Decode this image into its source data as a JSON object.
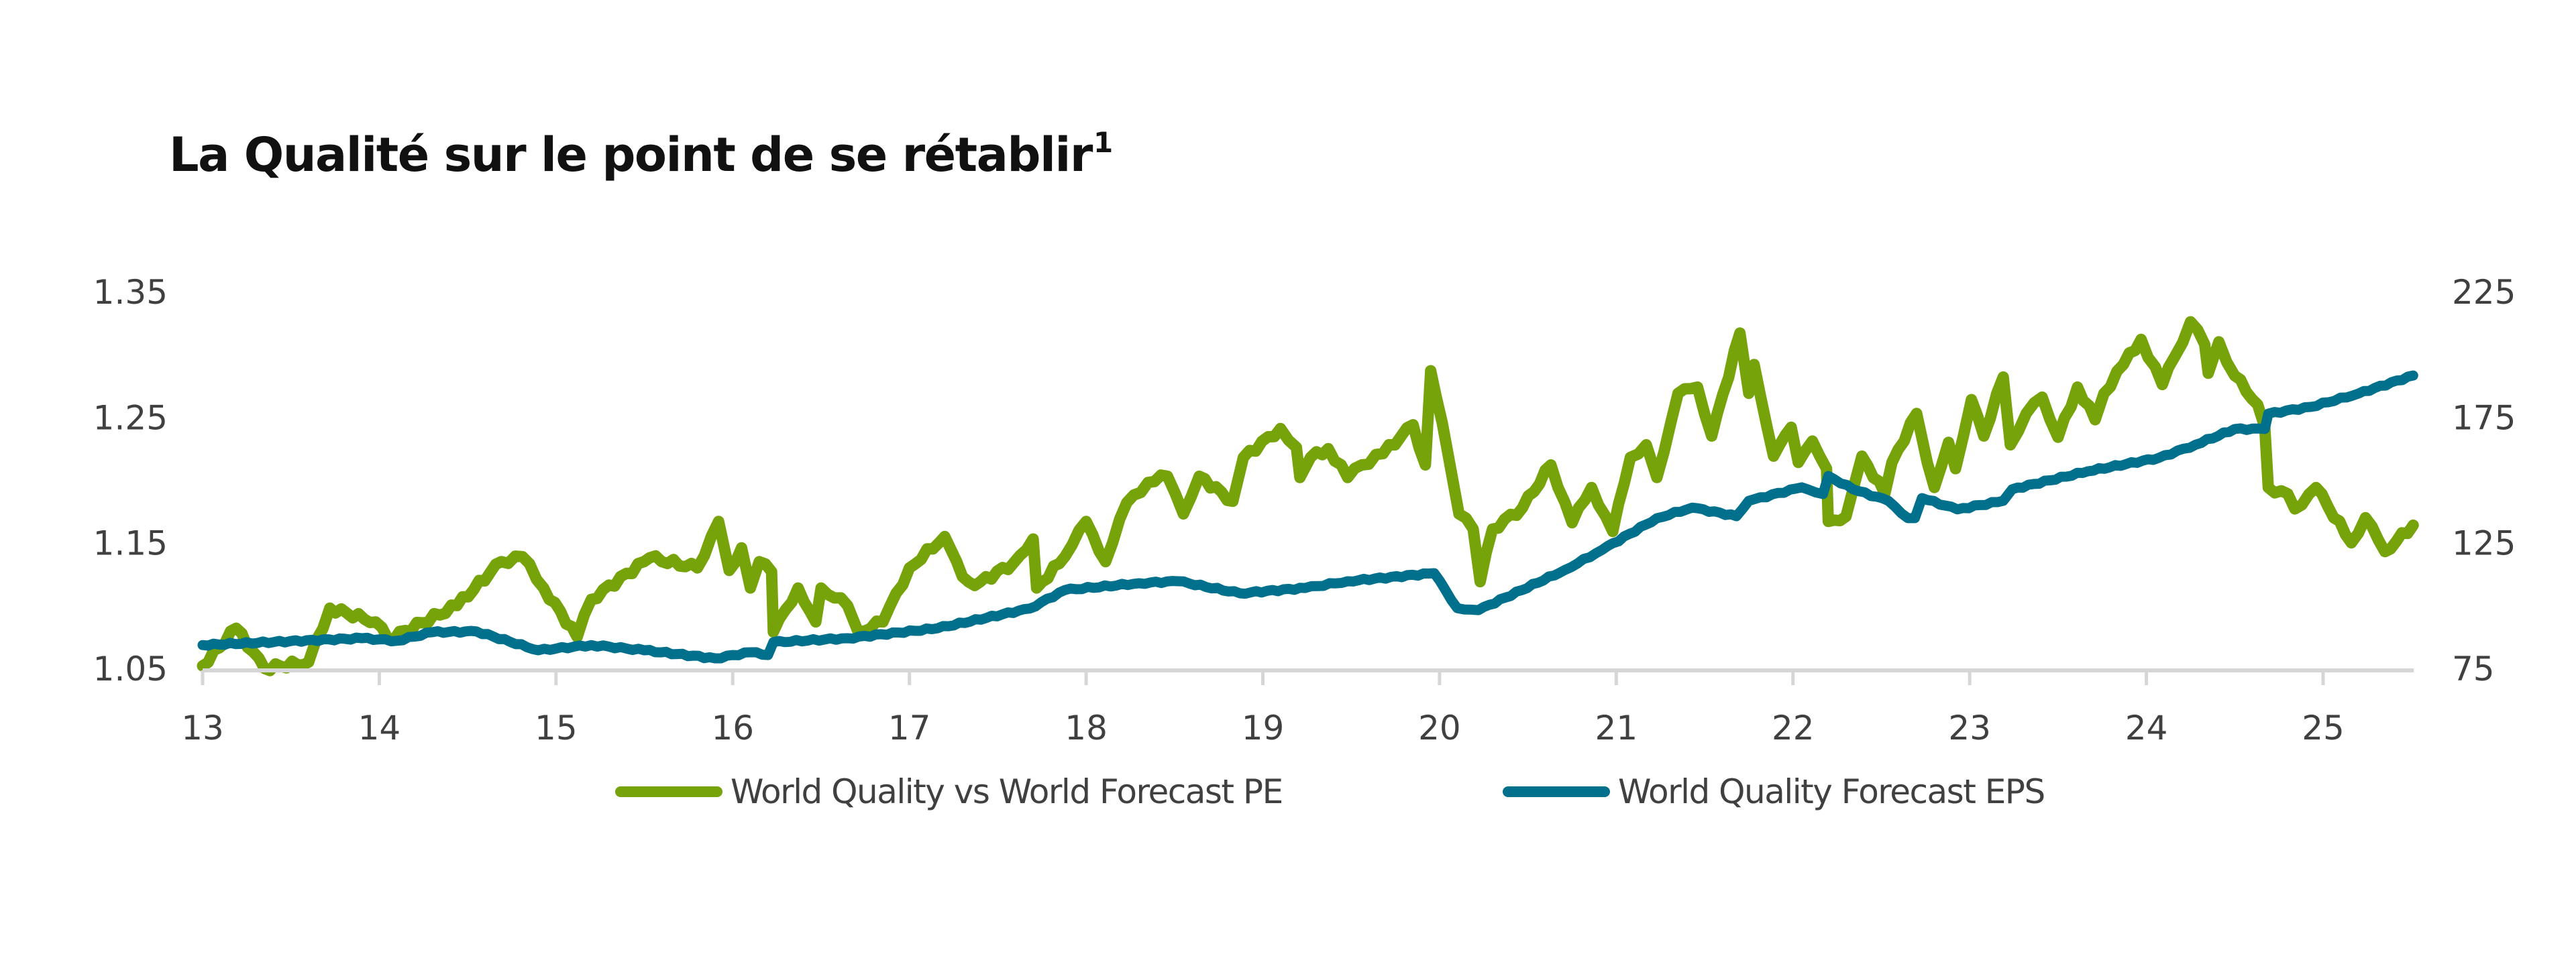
{
  "chart_data": {
    "type": "line",
    "title": "La Qualité sur le point de se rétablir",
    "title_footnote": "1",
    "xlabel": "",
    "x_ticks": [
      "13",
      "14",
      "15",
      "16",
      "17",
      "18",
      "19",
      "20",
      "21",
      "22",
      "23",
      "24",
      "25"
    ],
    "x_range": [
      13,
      25.51
    ],
    "y_left": {
      "label": "",
      "ticks": [
        "1.35",
        "1.25",
        "1.15",
        "1.05"
      ],
      "range": [
        1.05,
        1.35
      ]
    },
    "y_right": {
      "label": "",
      "ticks": [
        "225",
        "175",
        "125",
        "75"
      ],
      "range": [
        75,
        225
      ]
    },
    "grid": false,
    "legend_position": "bottom",
    "series": [
      {
        "name": "World Quality vs World Forecast PE",
        "axis": "left",
        "color": "#76A20A",
        "points": [
          [
            13.0,
            1.052
          ],
          [
            13.19,
            1.082
          ],
          [
            13.35,
            1.05
          ],
          [
            13.6,
            1.055
          ],
          [
            13.72,
            1.098
          ],
          [
            13.98,
            1.087
          ],
          [
            14.05,
            1.073
          ],
          [
            14.44,
            1.1
          ],
          [
            14.69,
            1.135
          ],
          [
            14.81,
            1.139
          ],
          [
            14.93,
            1.114
          ],
          [
            15.12,
            1.075
          ],
          [
            15.2,
            1.105
          ],
          [
            15.53,
            1.138
          ],
          [
            15.8,
            1.13
          ],
          [
            15.92,
            1.167
          ],
          [
            15.98,
            1.128
          ],
          [
            16.05,
            1.146
          ],
          [
            16.1,
            1.114
          ],
          [
            16.15,
            1.135
          ],
          [
            16.22,
            1.127
          ],
          [
            16.23,
            1.079
          ],
          [
            16.37,
            1.114
          ],
          [
            16.47,
            1.087
          ],
          [
            16.5,
            1.114
          ],
          [
            16.65,
            1.1
          ],
          [
            16.71,
            1.079
          ],
          [
            16.85,
            1.087
          ],
          [
            17.0,
            1.13
          ],
          [
            17.2,
            1.155
          ],
          [
            17.3,
            1.123
          ],
          [
            17.37,
            1.116
          ],
          [
            17.59,
            1.134
          ],
          [
            17.7,
            1.153
          ],
          [
            17.72,
            1.114
          ],
          [
            17.88,
            1.139
          ],
          [
            18.0,
            1.167
          ],
          [
            18.11,
            1.135
          ],
          [
            18.23,
            1.182
          ],
          [
            18.35,
            1.198
          ],
          [
            18.46,
            1.203
          ],
          [
            18.55,
            1.173
          ],
          [
            18.64,
            1.203
          ],
          [
            18.83,
            1.183
          ],
          [
            18.89,
            1.218
          ],
          [
            19.1,
            1.241
          ],
          [
            19.19,
            1.226
          ],
          [
            19.21,
            1.202
          ],
          [
            19.27,
            1.218
          ],
          [
            19.37,
            1.225
          ],
          [
            19.48,
            1.202
          ],
          [
            19.56,
            1.212
          ],
          [
            19.68,
            1.221
          ],
          [
            19.85,
            1.244
          ],
          [
            19.92,
            1.212
          ],
          [
            19.95,
            1.287
          ],
          [
            19.98,
            1.267
          ],
          [
            20.05,
            1.219
          ],
          [
            20.11,
            1.173
          ],
          [
            20.19,
            1.161
          ],
          [
            20.23,
            1.119
          ],
          [
            20.3,
            1.161
          ],
          [
            20.47,
            1.178
          ],
          [
            20.63,
            1.212
          ],
          [
            20.75,
            1.166
          ],
          [
            20.86,
            1.194
          ],
          [
            20.98,
            1.159
          ],
          [
            21.08,
            1.218
          ],
          [
            21.17,
            1.228
          ],
          [
            21.23,
            1.202
          ],
          [
            21.35,
            1.269
          ],
          [
            21.46,
            1.274
          ],
          [
            21.54,
            1.235
          ],
          [
            21.7,
            1.317
          ],
          [
            21.75,
            1.269
          ],
          [
            21.78,
            1.292
          ],
          [
            21.89,
            1.219
          ],
          [
            21.99,
            1.242
          ],
          [
            22.03,
            1.214
          ],
          [
            22.11,
            1.231
          ],
          [
            22.19,
            1.209
          ],
          [
            22.2,
            1.167
          ],
          [
            22.3,
            1.171
          ],
          [
            22.39,
            1.219
          ],
          [
            22.52,
            1.189
          ],
          [
            22.56,
            1.214
          ],
          [
            22.7,
            1.253
          ],
          [
            22.76,
            1.214
          ],
          [
            22.8,
            1.194
          ],
          [
            22.88,
            1.23
          ],
          [
            22.92,
            1.209
          ],
          [
            23.01,
            1.264
          ],
          [
            23.08,
            1.235
          ],
          [
            23.19,
            1.282
          ],
          [
            23.23,
            1.228
          ],
          [
            23.32,
            1.253
          ],
          [
            23.41,
            1.266
          ],
          [
            23.5,
            1.234
          ],
          [
            23.61,
            1.274
          ],
          [
            23.71,
            1.248
          ],
          [
            23.76,
            1.269
          ],
          [
            23.87,
            1.292
          ],
          [
            23.97,
            1.312
          ],
          [
            24.09,
            1.276
          ],
          [
            24.16,
            1.298
          ],
          [
            24.25,
            1.326
          ],
          [
            24.33,
            1.308
          ],
          [
            24.35,
            1.285
          ],
          [
            24.41,
            1.31
          ],
          [
            24.5,
            1.283
          ],
          [
            24.63,
            1.26
          ],
          [
            24.67,
            1.242
          ],
          [
            24.69,
            1.194
          ],
          [
            24.8,
            1.189
          ],
          [
            24.84,
            1.177
          ],
          [
            24.96,
            1.194
          ],
          [
            25.16,
            1.15
          ],
          [
            25.24,
            1.17
          ],
          [
            25.35,
            1.143
          ],
          [
            25.51,
            1.164
          ]
        ]
      },
      {
        "name": "World Quality Forecast EPS",
        "axis": "right",
        "color": "#00708C",
        "points": [
          [
            13.0,
            84.3
          ],
          [
            13.9,
            87
          ],
          [
            14.1,
            86
          ],
          [
            14.3,
            89.4
          ],
          [
            14.55,
            89.7
          ],
          [
            14.9,
            82.2
          ],
          [
            15.2,
            84.3
          ],
          [
            15.5,
            82.2
          ],
          [
            15.9,
            79
          ],
          [
            16.1,
            81.4
          ],
          [
            16.2,
            80.3
          ],
          [
            16.23,
            85.4
          ],
          [
            16.65,
            87
          ],
          [
            17.16,
            91
          ],
          [
            17.68,
            98.8
          ],
          [
            17.88,
            106.2
          ],
          [
            18.3,
            108.9
          ],
          [
            18.52,
            109.7
          ],
          [
            18.87,
            104.9
          ],
          [
            19.24,
            107
          ],
          [
            19.48,
            109.7
          ],
          [
            19.97,
            112.9
          ],
          [
            20.1,
            99
          ],
          [
            20.22,
            98.2
          ],
          [
            20.71,
            114.2
          ],
          [
            20.92,
            122.2
          ],
          [
            21.23,
            134.8
          ],
          [
            21.43,
            139
          ],
          [
            21.68,
            135.6
          ],
          [
            21.75,
            141.7
          ],
          [
            22.05,
            147.1
          ],
          [
            22.17,
            144.4
          ],
          [
            22.2,
            151.6
          ],
          [
            22.34,
            146.3
          ],
          [
            22.54,
            141.7
          ],
          [
            22.65,
            134.8
          ],
          [
            22.69,
            134.8
          ],
          [
            22.73,
            142.8
          ],
          [
            22.93,
            138.3
          ],
          [
            23.19,
            141.7
          ],
          [
            23.24,
            146.3
          ],
          [
            23.67,
            153.5
          ],
          [
            24.07,
            158.8
          ],
          [
            24.28,
            164.1
          ],
          [
            24.5,
            170.3
          ],
          [
            24.67,
            170.3
          ],
          [
            24.69,
            176.4
          ],
          [
            24.93,
            179.1
          ],
          [
            25.2,
            184.4
          ],
          [
            25.51,
            191.6
          ]
        ]
      }
    ]
  },
  "legend": [
    {
      "label": "World Quality vs World Forecast PE",
      "color": "#76A20A"
    },
    {
      "label": "World Quality Forecast EPS",
      "color": "#00708C"
    }
  ]
}
